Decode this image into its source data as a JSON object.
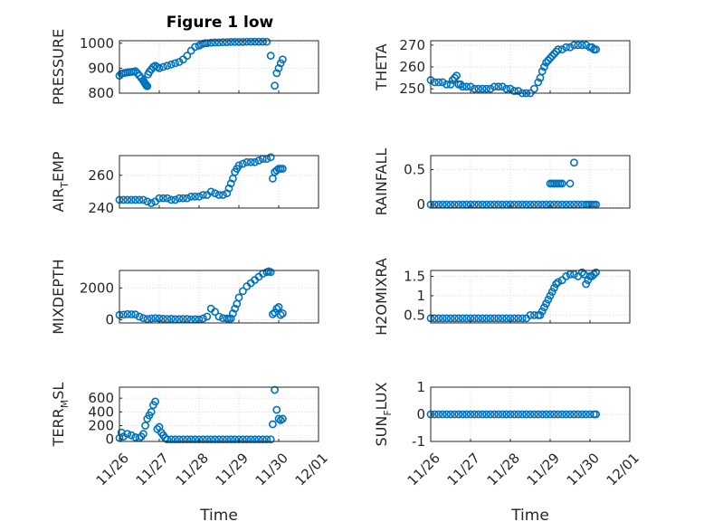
{
  "figure": {
    "title": "Figure 1 low",
    "x_axis_label": "Time",
    "x_tick_labels": [
      "11/26",
      "11/27",
      "11/28",
      "11/29",
      "11/30",
      "12/01"
    ],
    "marker_color": "#0072BD",
    "axes_color": "#262626",
    "grid_color": "#d9d9d9"
  },
  "chart_data": [
    {
      "type": "scatter",
      "panel": "pressure",
      "title": "Figure 1 low",
      "ylabel": "PRESSURE",
      "xlim": [
        0,
        5
      ],
      "ylim": [
        800,
        1010
      ],
      "yticks": [
        800,
        900,
        1000
      ],
      "xlabel": "",
      "show_x_ticks": false,
      "series": [
        {
          "x": [
            0.0,
            0.05,
            0.1,
            0.15,
            0.2,
            0.25,
            0.3,
            0.35,
            0.4,
            0.45,
            0.5,
            0.55,
            0.6,
            0.62,
            0.64,
            0.66,
            0.68,
            0.7,
            0.72,
            0.75,
            0.8,
            0.85,
            0.9,
            0.95,
            1.0,
            1.1,
            1.2,
            1.3,
            1.4,
            1.5,
            1.6,
            1.7,
            1.8,
            1.9,
            2.0,
            2.05,
            2.1,
            2.15,
            2.2,
            2.3,
            2.4,
            2.5,
            2.6,
            2.7,
            2.8,
            2.9,
            3.0,
            3.1,
            3.2,
            3.3,
            3.4,
            3.5,
            3.6,
            3.7,
            3.8,
            3.9,
            3.95,
            4.0,
            4.05,
            4.1
          ],
          "y": [
            870,
            878,
            880,
            882,
            883,
            884,
            885,
            886,
            888,
            880,
            870,
            860,
            850,
            845,
            840,
            835,
            830,
            828,
            875,
            885,
            895,
            905,
            910,
            905,
            900,
            905,
            910,
            915,
            920,
            925,
            935,
            950,
            970,
            985,
            990,
            995,
            998,
            1000,
            1000,
            1002,
            1003,
            1003,
            1004,
            1004,
            1005,
            1005,
            1005,
            1005,
            1006,
            1006,
            1006,
            1006,
            1006,
            1006,
            950,
            830,
            880,
            900,
            920,
            935
          ]
        }
      ]
    },
    {
      "type": "scatter",
      "panel": "theta",
      "ylabel": "THETA",
      "xlim": [
        0,
        5
      ],
      "ylim": [
        248,
        272
      ],
      "yticks": [
        250,
        260,
        270
      ],
      "xlabel": "",
      "show_x_ticks": false,
      "series": [
        {
          "x": [
            0.0,
            0.1,
            0.2,
            0.3,
            0.4,
            0.5,
            0.55,
            0.6,
            0.65,
            0.7,
            0.75,
            0.8,
            0.9,
            1.0,
            1.1,
            1.2,
            1.3,
            1.4,
            1.5,
            1.6,
            1.7,
            1.8,
            1.9,
            2.0,
            2.1,
            2.2,
            2.3,
            2.4,
            2.5,
            2.6,
            2.7,
            2.75,
            2.8,
            2.85,
            2.9,
            2.95,
            3.0,
            3.05,
            3.1,
            3.15,
            3.2,
            3.3,
            3.4,
            3.5,
            3.6,
            3.7,
            3.8,
            3.9,
            4.0,
            4.05,
            4.1,
            4.15
          ],
          "y": [
            254,
            253,
            253,
            253,
            252,
            252,
            254,
            255,
            256,
            252,
            252,
            251,
            251,
            251,
            250,
            250,
            250,
            250,
            250,
            251,
            251,
            251,
            250,
            250,
            249,
            249,
            248,
            248,
            248,
            250,
            253,
            255,
            258,
            260,
            262,
            263,
            264,
            265,
            266,
            267,
            268,
            268,
            269,
            269,
            270,
            270,
            270,
            270,
            269,
            269,
            268,
            268
          ]
        }
      ]
    },
    {
      "type": "scatter",
      "panel": "air_temp",
      "ylabel_main": "AIR",
      "ylabel_sub": "T",
      "ylabel_rest": "EMP",
      "xlim": [
        0,
        5
      ],
      "ylim": [
        240,
        272
      ],
      "yticks": [
        240,
        260
      ],
      "xlabel": "",
      "show_x_ticks": false,
      "series": [
        {
          "x": [
            0.0,
            0.1,
            0.2,
            0.3,
            0.4,
            0.5,
            0.6,
            0.7,
            0.8,
            0.9,
            1.0,
            1.1,
            1.2,
            1.3,
            1.4,
            1.5,
            1.6,
            1.7,
            1.8,
            1.9,
            2.0,
            2.1,
            2.2,
            2.3,
            2.4,
            2.5,
            2.6,
            2.7,
            2.75,
            2.8,
            2.85,
            2.9,
            2.95,
            3.0,
            3.1,
            3.2,
            3.3,
            3.4,
            3.5,
            3.6,
            3.7,
            3.8,
            3.85,
            3.9,
            3.95,
            4.0,
            4.05,
            4.1
          ],
          "y": [
            245,
            245,
            245,
            245,
            245,
            245,
            245,
            244,
            243,
            244,
            246,
            246,
            246,
            245,
            245,
            246,
            246,
            246,
            247,
            247,
            247,
            248,
            248,
            250,
            249,
            248,
            248,
            249,
            252,
            255,
            258,
            262,
            264,
            266,
            267,
            268,
            268,
            268,
            269,
            270,
            270,
            271,
            258,
            262,
            263,
            264,
            264,
            264
          ]
        }
      ]
    },
    {
      "type": "scatter",
      "panel": "rainfall",
      "ylabel": "RAINFALL",
      "xlim": [
        0,
        5
      ],
      "ylim": [
        -0.05,
        0.7
      ],
      "yticks": [
        0,
        0.5
      ],
      "ytick_labels": [
        "0",
        "0.5"
      ],
      "xlabel": "",
      "show_x_ticks": false,
      "series": [
        {
          "x": [
            0.0,
            0.1,
            0.2,
            0.3,
            0.4,
            0.5,
            0.6,
            0.7,
            0.8,
            0.9,
            1.0,
            1.1,
            1.2,
            1.3,
            1.4,
            1.5,
            1.6,
            1.7,
            1.8,
            1.9,
            2.0,
            2.1,
            2.2,
            2.3,
            2.4,
            2.5,
            2.6,
            2.7,
            2.8,
            2.9,
            3.0,
            3.1,
            3.2,
            3.3,
            3.4,
            3.5,
            3.6,
            3.7,
            3.8,
            3.9,
            3.95,
            4.0,
            4.05,
            4.1,
            4.15,
            3.0,
            3.05,
            3.1,
            3.15,
            3.2,
            3.25,
            3.3,
            3.5,
            3.6
          ],
          "y": [
            0,
            0,
            0,
            0,
            0,
            0,
            0,
            0,
            0,
            0,
            0,
            0,
            0,
            0,
            0,
            0,
            0,
            0,
            0,
            0,
            0,
            0,
            0,
            0,
            0,
            0,
            0,
            0,
            0,
            0,
            0,
            0,
            0,
            0,
            0,
            0,
            0,
            0,
            0,
            0,
            0,
            0,
            0,
            0,
            0,
            0.3,
            0.3,
            0.3,
            0.3,
            0.3,
            0.3,
            0.3,
            0.3,
            0.6
          ]
        }
      ]
    },
    {
      "type": "scatter",
      "panel": "mixdepth",
      "ylabel": "MIXDEPTH",
      "xlim": [
        0,
        5
      ],
      "ylim": [
        -200,
        3100
      ],
      "yticks": [
        0,
        2000
      ],
      "xlabel": "",
      "show_x_ticks": false,
      "series": [
        {
          "x": [
            0.0,
            0.1,
            0.2,
            0.3,
            0.4,
            0.5,
            0.6,
            0.7,
            0.8,
            0.9,
            1.0,
            1.1,
            1.2,
            1.3,
            1.4,
            1.5,
            1.6,
            1.7,
            1.8,
            1.9,
            2.0,
            2.1,
            2.2,
            2.3,
            2.4,
            2.5,
            2.6,
            2.7,
            2.75,
            2.8,
            2.85,
            2.9,
            2.95,
            3.0,
            3.1,
            3.2,
            3.3,
            3.4,
            3.5,
            3.6,
            3.7,
            3.75,
            3.8,
            3.85,
            3.9,
            3.95,
            4.0,
            4.05,
            4.1
          ],
          "y": [
            300,
            320,
            350,
            340,
            330,
            200,
            100,
            50,
            80,
            100,
            80,
            60,
            50,
            60,
            40,
            40,
            50,
            50,
            20,
            30,
            20,
            80,
            200,
            700,
            500,
            200,
            100,
            80,
            60,
            80,
            400,
            700,
            1000,
            1400,
            1800,
            2100,
            2300,
            2500,
            2700,
            2900,
            3000,
            3050,
            3000,
            350,
            450,
            700,
            800,
            300,
            400
          ]
        }
      ]
    },
    {
      "type": "scatter",
      "panel": "h2omixra",
      "ylabel": "H2OMIXRA",
      "xlim": [
        0,
        5
      ],
      "ylim": [
        0.3,
        1.65
      ],
      "yticks": [
        0.5,
        1,
        1.5
      ],
      "xlabel": "",
      "show_x_ticks": false,
      "series": [
        {
          "x": [
            0.0,
            0.1,
            0.2,
            0.3,
            0.4,
            0.5,
            0.6,
            0.7,
            0.8,
            0.9,
            1.0,
            1.1,
            1.2,
            1.3,
            1.4,
            1.5,
            1.6,
            1.7,
            1.8,
            1.9,
            2.0,
            2.1,
            2.2,
            2.3,
            2.4,
            2.5,
            2.6,
            2.7,
            2.75,
            2.8,
            2.85,
            2.9,
            2.95,
            3.0,
            3.05,
            3.1,
            3.15,
            3.2,
            3.3,
            3.4,
            3.5,
            3.6,
            3.7,
            3.8,
            3.85,
            3.9,
            3.95,
            4.0,
            4.05,
            4.1,
            4.15
          ],
          "y": [
            0.42,
            0.42,
            0.42,
            0.42,
            0.42,
            0.42,
            0.42,
            0.42,
            0.42,
            0.42,
            0.42,
            0.42,
            0.42,
            0.42,
            0.42,
            0.42,
            0.42,
            0.42,
            0.42,
            0.42,
            0.42,
            0.42,
            0.42,
            0.42,
            0.42,
            0.5,
            0.5,
            0.5,
            0.5,
            0.6,
            0.7,
            0.8,
            0.9,
            1.0,
            1.1,
            1.2,
            1.3,
            1.35,
            1.4,
            1.5,
            1.55,
            1.55,
            1.5,
            1.6,
            1.55,
            1.3,
            1.4,
            1.5,
            1.5,
            1.55,
            1.6
          ]
        }
      ]
    },
    {
      "type": "scatter",
      "panel": "terr_msl",
      "ylabel_main": "TERR",
      "ylabel_sub": "M",
      "ylabel_rest": "SL",
      "xlim": [
        0,
        5
      ],
      "ylim": [
        -30,
        760
      ],
      "yticks": [
        0,
        200,
        400,
        600
      ],
      "xlabel": "Time",
      "show_x_ticks": true,
      "series": [
        {
          "x": [
            0.0,
            0.05,
            0.1,
            0.2,
            0.3,
            0.4,
            0.5,
            0.55,
            0.6,
            0.65,
            0.7,
            0.75,
            0.8,
            0.85,
            0.9,
            0.95,
            1.0,
            1.05,
            1.1,
            1.15,
            1.2,
            1.3,
            1.4,
            1.5,
            1.6,
            1.7,
            1.8,
            1.9,
            2.0,
            2.1,
            2.2,
            2.3,
            2.4,
            2.5,
            2.6,
            2.7,
            2.8,
            2.9,
            3.0,
            3.1,
            3.2,
            3.3,
            3.4,
            3.5,
            3.6,
            3.7,
            3.8,
            3.85,
            3.9,
            3.95,
            4.0,
            4.05,
            4.1
          ],
          "y": [
            20,
            100,
            40,
            80,
            60,
            30,
            20,
            40,
            80,
            200,
            300,
            350,
            400,
            500,
            550,
            150,
            180,
            100,
            60,
            20,
            0,
            0,
            0,
            0,
            0,
            0,
            0,
            0,
            0,
            0,
            0,
            0,
            0,
            0,
            0,
            0,
            0,
            0,
            0,
            0,
            0,
            0,
            0,
            0,
            0,
            0,
            0,
            220,
            720,
            430,
            300,
            280,
            300
          ]
        }
      ]
    },
    {
      "type": "scatter",
      "panel": "sun_flux",
      "ylabel_main": "SUN",
      "ylabel_sub": "F",
      "ylabel_rest": "LUX",
      "xlim": [
        0,
        5
      ],
      "ylim": [
        -1,
        1
      ],
      "yticks": [
        -1,
        0,
        1
      ],
      "xlabel": "Time",
      "show_x_ticks": true,
      "series": [
        {
          "x": [
            0.0,
            0.1,
            0.2,
            0.3,
            0.4,
            0.5,
            0.6,
            0.7,
            0.8,
            0.9,
            1.0,
            1.1,
            1.2,
            1.3,
            1.4,
            1.5,
            1.6,
            1.7,
            1.8,
            1.9,
            2.0,
            2.1,
            2.2,
            2.3,
            2.4,
            2.5,
            2.6,
            2.7,
            2.8,
            2.9,
            3.0,
            3.1,
            3.2,
            3.3,
            3.4,
            3.5,
            3.6,
            3.7,
            3.8,
            3.9,
            4.0,
            4.1,
            4.15
          ],
          "y": [
            0,
            0,
            0,
            0,
            0,
            0,
            0,
            0,
            0,
            0,
            0,
            0,
            0,
            0,
            0,
            0,
            0,
            0,
            0,
            0,
            0,
            0,
            0,
            0,
            0,
            0,
            0,
            0,
            0,
            0,
            0,
            0,
            0,
            0,
            0,
            0,
            0,
            0,
            0,
            0,
            0,
            0,
            0
          ]
        }
      ]
    }
  ]
}
